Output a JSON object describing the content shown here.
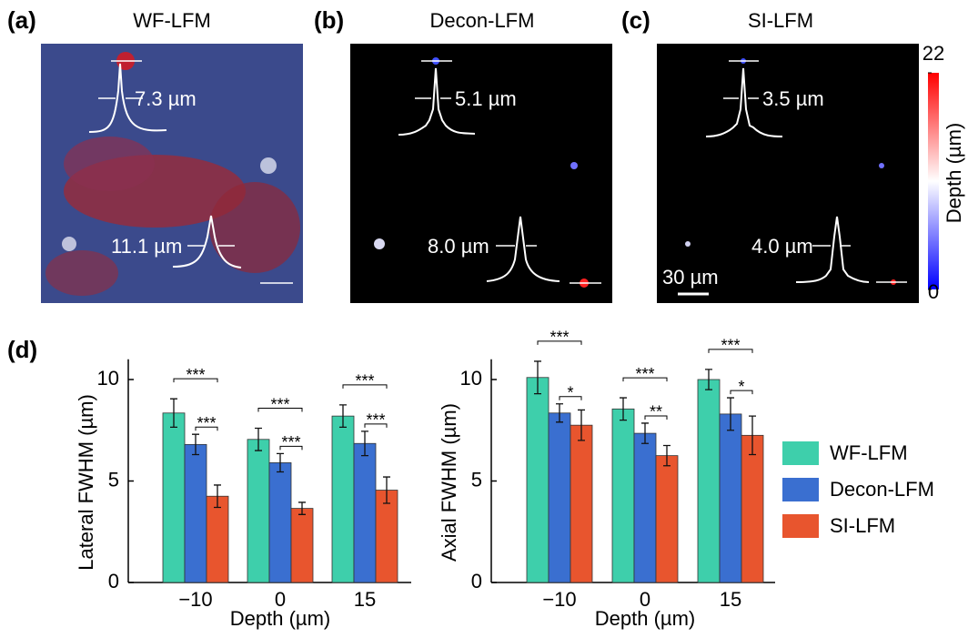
{
  "panels": [
    {
      "label": "(a)",
      "title": "WF-LFM",
      "measurements": [
        "7.3 µm",
        "11.1 µm"
      ]
    },
    {
      "label": "(b)",
      "title": "Decon-LFM",
      "measurements": [
        "5.1 µm",
        "8.0 µm"
      ]
    },
    {
      "label": "(c)",
      "title": "SI-LFM",
      "measurements": [
        "3.5 µm",
        "4.0 µm"
      ]
    }
  ],
  "scale_bar": "30 µm",
  "colorbar": {
    "label": "Depth (µm)",
    "ticks": [
      0,
      22
    ]
  },
  "panel_d_label": "(d)",
  "chart_data": [
    {
      "type": "bar",
      "ylabel": "Lateral FWHM (µm)",
      "xlabel": "Depth (µm)",
      "categories": [
        "−10",
        "0",
        "15"
      ],
      "series": [
        {
          "name": "WF-LFM",
          "color": "#3ecfab",
          "values": [
            8.35,
            7.05,
            8.2
          ],
          "errors": [
            0.7,
            0.55,
            0.55
          ]
        },
        {
          "name": "Decon-LFM",
          "color": "#3a6fd0",
          "values": [
            6.8,
            5.9,
            6.85
          ],
          "errors": [
            0.5,
            0.45,
            0.6
          ]
        },
        {
          "name": "SI-LFM",
          "color": "#e8552e",
          "values": [
            4.25,
            3.65,
            4.55
          ],
          "errors": [
            0.55,
            0.3,
            0.65
          ]
        }
      ],
      "ylim": [
        0,
        11
      ],
      "yticks": [
        0,
        5,
        10
      ],
      "significance": [
        [
          "***",
          "***"
        ],
        [
          "***",
          "***"
        ],
        [
          "***",
          "***"
        ]
      ],
      "legend": "right"
    },
    {
      "type": "bar",
      "ylabel": "Axial FWHM (µm)",
      "xlabel": "Depth (µm)",
      "categories": [
        "−10",
        "0",
        "15"
      ],
      "series": [
        {
          "name": "WF-LFM",
          "color": "#3ecfab",
          "values": [
            10.1,
            8.55,
            10.0
          ],
          "errors": [
            0.8,
            0.55,
            0.5
          ]
        },
        {
          "name": "Decon-LFM",
          "color": "#3a6fd0",
          "values": [
            8.35,
            7.35,
            8.3
          ],
          "errors": [
            0.45,
            0.5,
            0.8
          ]
        },
        {
          "name": "SI-LFM",
          "color": "#e8552e",
          "values": [
            7.75,
            6.25,
            7.25
          ],
          "errors": [
            0.75,
            0.5,
            0.95
          ]
        }
      ],
      "ylim": [
        0,
        11
      ],
      "yticks": [
        0,
        5,
        10
      ],
      "significance": [
        [
          "***",
          "*"
        ],
        [
          "***",
          "**"
        ],
        [
          "***",
          "*"
        ]
      ]
    }
  ]
}
